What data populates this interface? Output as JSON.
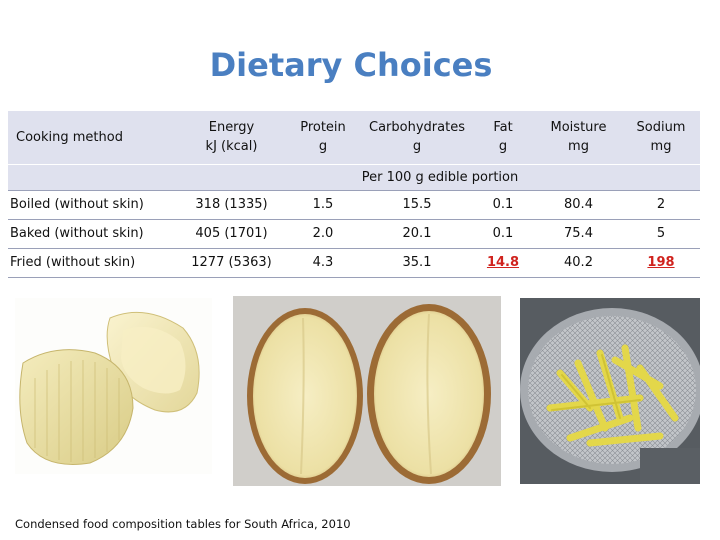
{
  "title": "Dietary Choices",
  "table": {
    "headers": {
      "method": "Cooking method",
      "energy": [
        "Energy",
        "kJ (kcal)"
      ],
      "protein": [
        "Protein",
        "g"
      ],
      "carbs": [
        "Carbohydrates",
        "g"
      ],
      "fat": [
        "Fat",
        "g"
      ],
      "moisture": [
        "Moisture",
        "mg"
      ],
      "sodium": [
        "Sodium",
        "mg"
      ]
    },
    "subheader": "Per 100 g edible portion",
    "rows": [
      {
        "method": "Boiled (without skin)",
        "energy": "318 (1335)",
        "protein": "1.5",
        "carbs": "15.5",
        "fat": "0.1",
        "moisture": "80.4",
        "sodium": "2"
      },
      {
        "method": "Baked (without skin)",
        "energy": "405 (1701)",
        "protein": "2.0",
        "carbs": "20.1",
        "fat": "0.1",
        "moisture": "75.4",
        "sodium": "5"
      },
      {
        "method": "Fried (without skin)",
        "energy": "1277 (5363)",
        "protein": "4.3",
        "carbs": "35.1",
        "fat": "14.8",
        "moisture": "40.2",
        "sodium": "198"
      }
    ],
    "highlight_color": "#d0231e"
  },
  "photos": {
    "boiled": "boiled-potato-photo",
    "baked": "baked-potato-photo",
    "fried": "fried-potato-photo"
  },
  "caption": "Condensed food composition tables for South Africa, 2010"
}
